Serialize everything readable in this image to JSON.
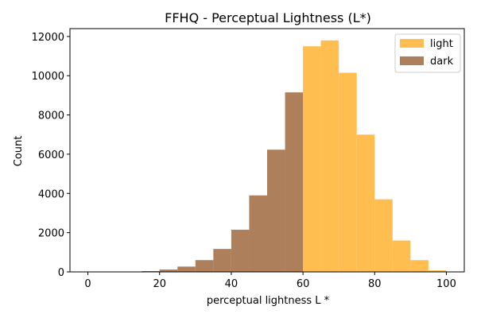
{
  "chart_data": {
    "type": "bar",
    "title": "FFHQ - Perceptual Lightness (L*)",
    "xlabel": "perceptual lightness L *",
    "ylabel": "Count",
    "xlim": [
      -5,
      105
    ],
    "ylim": [
      0,
      12400
    ],
    "x_ticks": [
      0,
      20,
      40,
      60,
      80,
      100
    ],
    "y_ticks": [
      0,
      2000,
      4000,
      6000,
      8000,
      10000,
      12000
    ],
    "legend_position": "top-right",
    "grid": false,
    "series": [
      {
        "name": "light",
        "color": "#ffbe4f",
        "bins": [
          {
            "x0": 60,
            "x1": 65,
            "value": 11500
          },
          {
            "x0": 65,
            "x1": 70,
            "value": 11800
          },
          {
            "x0": 70,
            "x1": 75,
            "value": 10150
          },
          {
            "x0": 75,
            "x1": 80,
            "value": 7000
          },
          {
            "x0": 80,
            "x1": 85,
            "value": 3700
          },
          {
            "x0": 85,
            "x1": 90,
            "value": 1600
          },
          {
            "x0": 90,
            "x1": 95,
            "value": 600
          },
          {
            "x0": 95,
            "x1": 100,
            "value": 80
          }
        ]
      },
      {
        "name": "dark",
        "color": "#ad7f5b",
        "bins": [
          {
            "x0": 0,
            "x1": 5,
            "value": 0
          },
          {
            "x0": 5,
            "x1": 10,
            "value": 5
          },
          {
            "x0": 10,
            "x1": 15,
            "value": 20
          },
          {
            "x0": 15,
            "x1": 20,
            "value": 40
          },
          {
            "x0": 20,
            "x1": 25,
            "value": 120
          },
          {
            "x0": 25,
            "x1": 30,
            "value": 270
          },
          {
            "x0": 30,
            "x1": 35,
            "value": 600
          },
          {
            "x0": 35,
            "x1": 40,
            "value": 1170
          },
          {
            "x0": 40,
            "x1": 45,
            "value": 2150
          },
          {
            "x0": 45,
            "x1": 50,
            "value": 3900
          },
          {
            "x0": 50,
            "x1": 55,
            "value": 6230
          },
          {
            "x0": 55,
            "x1": 60,
            "value": 9150
          }
        ]
      }
    ]
  }
}
